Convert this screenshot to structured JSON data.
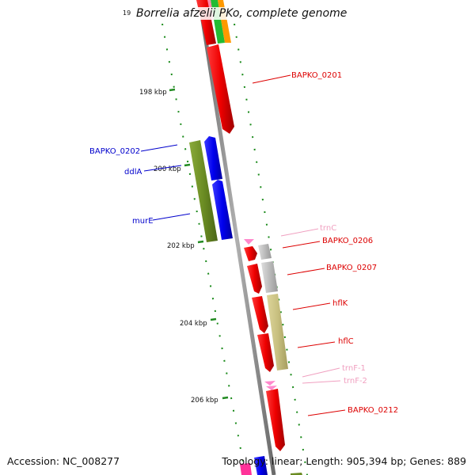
{
  "title": "Borrelia afzelii PKo, complete genome",
  "title_stub": "19",
  "accession": "Accession: NC_008277",
  "stats": "Topology: linear; Length: 905,394 bp; Genes: 889",
  "ruler": [
    {
      "label": "198 kbp"
    },
    {
      "label": "200 kbp"
    },
    {
      "label": "202 kbp"
    },
    {
      "label": "204 kbp"
    },
    {
      "label": "206 kbp"
    }
  ],
  "gene_labels": [
    {
      "text": "BAPKO_0201",
      "color": "#dd0000"
    },
    {
      "text": "BAPKO_0202",
      "color": "#0000cc"
    },
    {
      "text": "ddlA",
      "color": "#0000cc"
    },
    {
      "text": "murE",
      "color": "#0000cc"
    },
    {
      "text": "trnC",
      "color": "#f0a0c0"
    },
    {
      "text": "BAPKO_0206",
      "color": "#dd0000"
    },
    {
      "text": "BAPKO_0207",
      "color": "#dd0000"
    },
    {
      "text": "hflK",
      "color": "#dd0000"
    },
    {
      "text": "hflC",
      "color": "#dd0000"
    },
    {
      "text": "trnF-1",
      "color": "#f0a0c0"
    },
    {
      "text": "trnF-2",
      "color": "#f0a0c0"
    },
    {
      "text": "BAPKO_0212",
      "color": "#dd0000"
    }
  ],
  "colors": {
    "forward_cds": "#ee0000",
    "reverse_cds": "#0000ee",
    "trna": "#ff88cc",
    "olive": "#6b8c23",
    "khaki": "#c8c080",
    "gray": "#bbbbbb",
    "backbone": "#909090",
    "ruler_tick": "#228b22"
  }
}
